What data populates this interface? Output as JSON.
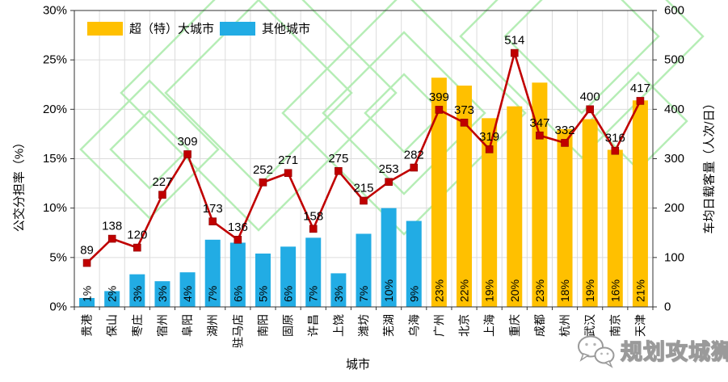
{
  "watermark": {
    "brand": "规划攻城狮"
  },
  "chart_data": {
    "type": "bar+line",
    "title": "",
    "x_axis_title": "城市",
    "grid": true,
    "left_axis": {
      "title": "公交分担率（%）",
      "min": 0,
      "max": 30,
      "tick_step": 5,
      "tick_labels": [
        "0%",
        "5%",
        "10%",
        "15%",
        "20%",
        "25%",
        "30%"
      ]
    },
    "right_axis": {
      "title": "车均日载客量（人次/日）",
      "min": 0,
      "max": 600,
      "tick_step": 100,
      "tick_labels": [
        "0",
        "100",
        "200",
        "300",
        "400",
        "500",
        "600"
      ]
    },
    "legend": [
      {
        "key": "mega",
        "label": "超（特）大城市",
        "color": "#FFC000"
      },
      {
        "key": "other",
        "label": "其他城市",
        "color": "#22ACE4"
      }
    ],
    "line_series": {
      "name": "车均日载客量",
      "color": "#C00000",
      "marker": "square"
    },
    "categories": [
      {
        "city": "贵港",
        "group": "other",
        "share_pct": 0.9,
        "share_label": "1%",
        "load": 89
      },
      {
        "city": "保山",
        "group": "other",
        "share_pct": 1.6,
        "share_label": "2%",
        "load": 138
      },
      {
        "city": "枣庄",
        "group": "other",
        "share_pct": 3.3,
        "share_label": "3%",
        "load": 120
      },
      {
        "city": "宿州",
        "group": "other",
        "share_pct": 2.6,
        "share_label": "3%",
        "load": 227
      },
      {
        "city": "阜阳",
        "group": "other",
        "share_pct": 3.5,
        "share_label": "4%",
        "load": 309
      },
      {
        "city": "湖州",
        "group": "other",
        "share_pct": 6.8,
        "share_label": "7%",
        "load": 173
      },
      {
        "city": "驻马店",
        "group": "other",
        "share_pct": 6.5,
        "share_label": "6%",
        "load": 136
      },
      {
        "city": "南阳",
        "group": "other",
        "share_pct": 5.4,
        "share_label": "5%",
        "load": 252
      },
      {
        "city": "固原",
        "group": "other",
        "share_pct": 6.1,
        "share_label": "6%",
        "load": 271
      },
      {
        "city": "许昌",
        "group": "other",
        "share_pct": 7.0,
        "share_label": "7%",
        "load": 158
      },
      {
        "city": "上饶",
        "group": "other",
        "share_pct": 3.4,
        "share_label": "3%",
        "load": 275
      },
      {
        "city": "潍坊",
        "group": "other",
        "share_pct": 7.4,
        "share_label": "7%",
        "load": 215
      },
      {
        "city": "芜湖",
        "group": "other",
        "share_pct": 10.0,
        "share_label": "10%",
        "load": 253
      },
      {
        "city": "乌海",
        "group": "other",
        "share_pct": 8.7,
        "share_label": "9%",
        "load": 282
      },
      {
        "city": "广州",
        "group": "mega",
        "share_pct": 23.2,
        "share_label": "23%",
        "load": 399
      },
      {
        "city": "北京",
        "group": "mega",
        "share_pct": 22.4,
        "share_label": "22%",
        "load": 373
      },
      {
        "city": "上海",
        "group": "mega",
        "share_pct": 19.1,
        "share_label": "19%",
        "load": 319
      },
      {
        "city": "重庆",
        "group": "mega",
        "share_pct": 20.3,
        "share_label": "20%",
        "load": 514
      },
      {
        "city": "成都",
        "group": "mega",
        "share_pct": 22.7,
        "share_label": "23%",
        "load": 347
      },
      {
        "city": "杭州",
        "group": "mega",
        "share_pct": 18.0,
        "share_label": "18%",
        "load": 332
      },
      {
        "city": "武汉",
        "group": "mega",
        "share_pct": 19.0,
        "share_label": "19%",
        "load": 400
      },
      {
        "city": "南京",
        "group": "mega",
        "share_pct": 15.9,
        "share_label": "16%",
        "load": 316
      },
      {
        "city": "天津",
        "group": "mega",
        "share_pct": 20.9,
        "share_label": "21%",
        "load": 417
      }
    ],
    "colors": {
      "line": "#C00000",
      "bar_mega": "#FFC000",
      "bar_other": "#22ACE4",
      "grid": "#DCDCDC",
      "frame": "#333333",
      "text": "#000000",
      "logo_watermark": "#A5E9A5"
    },
    "layout_hints": {
      "legend_position": "top-inside",
      "line_on_secondary_axis": true
    }
  }
}
